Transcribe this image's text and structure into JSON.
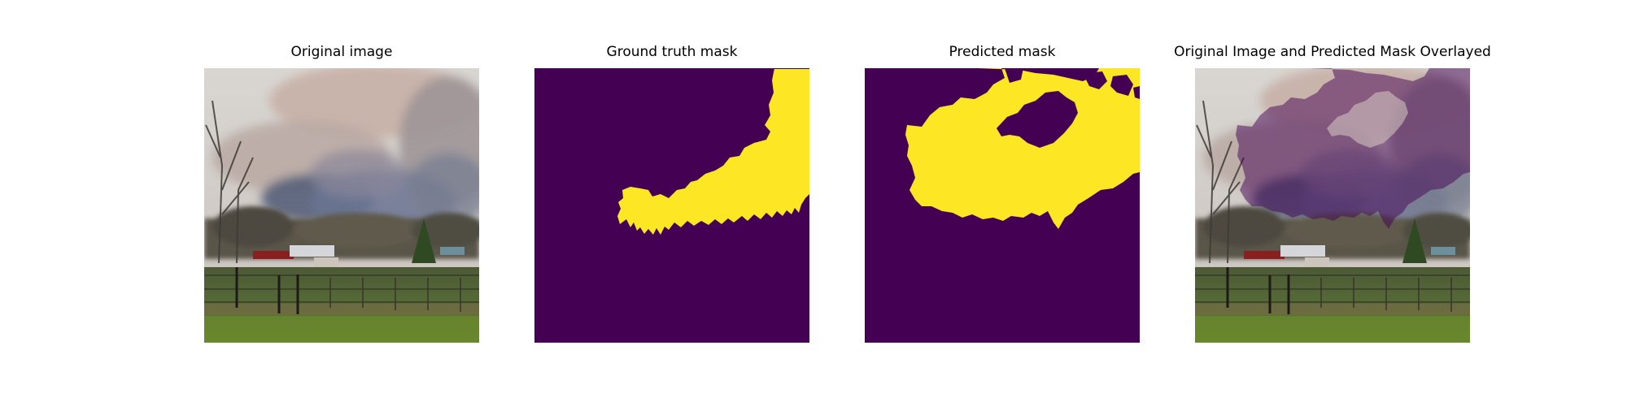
{
  "panels": [
    {
      "title": "Original image"
    },
    {
      "title": "Ground truth mask"
    },
    {
      "title": "Predicted mask"
    },
    {
      "title": "Original Image and Predicted Mask Overlayed"
    }
  ],
  "colors": {
    "mask_background": "#440154",
    "mask_foreground": "#fde725",
    "overlay_tint": "#440154"
  }
}
